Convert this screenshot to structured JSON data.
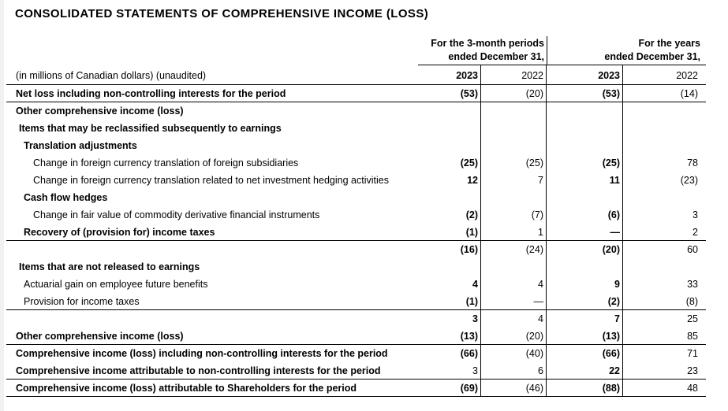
{
  "title": "CONSOLIDATED STATEMENTS OF COMPREHENSIVE INCOME (LOSS)",
  "colors": {
    "text": "#000000",
    "rule_lines": "#000000",
    "background": "#ffffff",
    "left_edge_strip": "#f1f1f1"
  },
  "table": {
    "unit_note": "(in millions of Canadian dollars) (unaudited)",
    "column_groups": [
      {
        "line1": "For the 3-month periods",
        "line2": "ended December 31,"
      },
      {
        "line1": "For the years",
        "line2": "ended December 31,"
      }
    ],
    "year_columns": [
      "2023",
      "2022",
      "2023",
      "2022"
    ],
    "rows": [
      {
        "label": "Net loss including non-controlling interests for the period",
        "indent": 0,
        "label_bold": true,
        "values": [
          "(53)",
          "(20)",
          "(53)",
          "(14)"
        ],
        "values_bold": [
          true,
          false,
          true,
          false
        ],
        "underline": true
      },
      {
        "label": "Other comprehensive income (loss)",
        "indent": 0,
        "label_bold": true,
        "values": [
          "",
          "",
          "",
          ""
        ],
        "values_bold": [
          false,
          false,
          false,
          false
        ],
        "underline": false
      },
      {
        "label": "Items that may be reclassified subsequently to earnings",
        "indent": 1,
        "label_bold": true,
        "values": [
          "",
          "",
          "",
          ""
        ],
        "values_bold": [
          false,
          false,
          false,
          false
        ],
        "underline": false
      },
      {
        "label": "Translation adjustments",
        "indent": 2,
        "label_bold": true,
        "values": [
          "",
          "",
          "",
          ""
        ],
        "values_bold": [
          false,
          false,
          false,
          false
        ],
        "underline": false
      },
      {
        "label": "Change in foreign currency translation of foreign subsidiaries",
        "indent": 3,
        "label_bold": false,
        "values": [
          "(25)",
          "(25)",
          "(25)",
          "78"
        ],
        "values_bold": [
          true,
          false,
          true,
          false
        ],
        "underline": false
      },
      {
        "label": "Change in foreign currency translation related to net investment hedging activities",
        "indent": 3,
        "label_bold": false,
        "values": [
          "12",
          "7",
          "11",
          "(23)"
        ],
        "values_bold": [
          true,
          false,
          true,
          false
        ],
        "underline": false
      },
      {
        "label": "Cash flow hedges",
        "indent": 2,
        "label_bold": true,
        "values": [
          "",
          "",
          "",
          ""
        ],
        "values_bold": [
          false,
          false,
          false,
          false
        ],
        "underline": false
      },
      {
        "label": "Change in fair value of commodity derivative financial instruments",
        "indent": 3,
        "label_bold": false,
        "values": [
          "(2)",
          "(7)",
          "(6)",
          "3"
        ],
        "values_bold": [
          true,
          false,
          true,
          false
        ],
        "underline": false
      },
      {
        "label": "Recovery of (provision for) income taxes",
        "indent": 2,
        "label_bold": true,
        "values": [
          "(1)",
          "1",
          "—",
          "2"
        ],
        "values_bold": [
          true,
          false,
          true,
          false
        ],
        "underline": true
      },
      {
        "label": "",
        "indent": 0,
        "label_bold": false,
        "values": [
          "(16)",
          "(24)",
          "(20)",
          "60"
        ],
        "values_bold": [
          true,
          false,
          true,
          false
        ],
        "underline": false
      },
      {
        "label": "Items that are not released to earnings",
        "indent": 1,
        "label_bold": true,
        "values": [
          "",
          "",
          "",
          ""
        ],
        "values_bold": [
          false,
          false,
          false,
          false
        ],
        "underline": false
      },
      {
        "label": "Actuarial gain on employee future benefits",
        "indent": 2,
        "label_bold": false,
        "values": [
          "4",
          "4",
          "9",
          "33"
        ],
        "values_bold": [
          true,
          false,
          true,
          false
        ],
        "underline": false
      },
      {
        "label": "Provision for income taxes",
        "indent": 2,
        "label_bold": false,
        "values": [
          "(1)",
          "—",
          "(2)",
          "(8)"
        ],
        "values_bold": [
          true,
          false,
          true,
          false
        ],
        "underline": true
      },
      {
        "label": "",
        "indent": 0,
        "label_bold": false,
        "values": [
          "3",
          "4",
          "7",
          "25"
        ],
        "values_bold": [
          true,
          false,
          true,
          false
        ],
        "underline": false
      },
      {
        "label": "Other comprehensive income (loss)",
        "indent": 0,
        "label_bold": true,
        "values": [
          "(13)",
          "(20)",
          "(13)",
          "85"
        ],
        "values_bold": [
          true,
          false,
          true,
          false
        ],
        "underline": true
      },
      {
        "label": "Comprehensive income (loss) including non-controlling interests for the period",
        "indent": 0,
        "label_bold": true,
        "values": [
          "(66)",
          "(40)",
          "(66)",
          "71"
        ],
        "values_bold": [
          true,
          false,
          true,
          false
        ],
        "underline": false
      },
      {
        "label": "Comprehensive income attributable to non-controlling interests for the period",
        "indent": 0,
        "label_bold": true,
        "values": [
          "3",
          "6",
          "22",
          "23"
        ],
        "values_bold": [
          false,
          false,
          true,
          false
        ],
        "underline": true
      },
      {
        "label": "Comprehensive income (loss) attributable to Shareholders for the period",
        "indent": 0,
        "label_bold": true,
        "values": [
          "(69)",
          "(46)",
          "(88)",
          "48"
        ],
        "values_bold": [
          true,
          false,
          true,
          false
        ],
        "underline": true
      }
    ]
  }
}
